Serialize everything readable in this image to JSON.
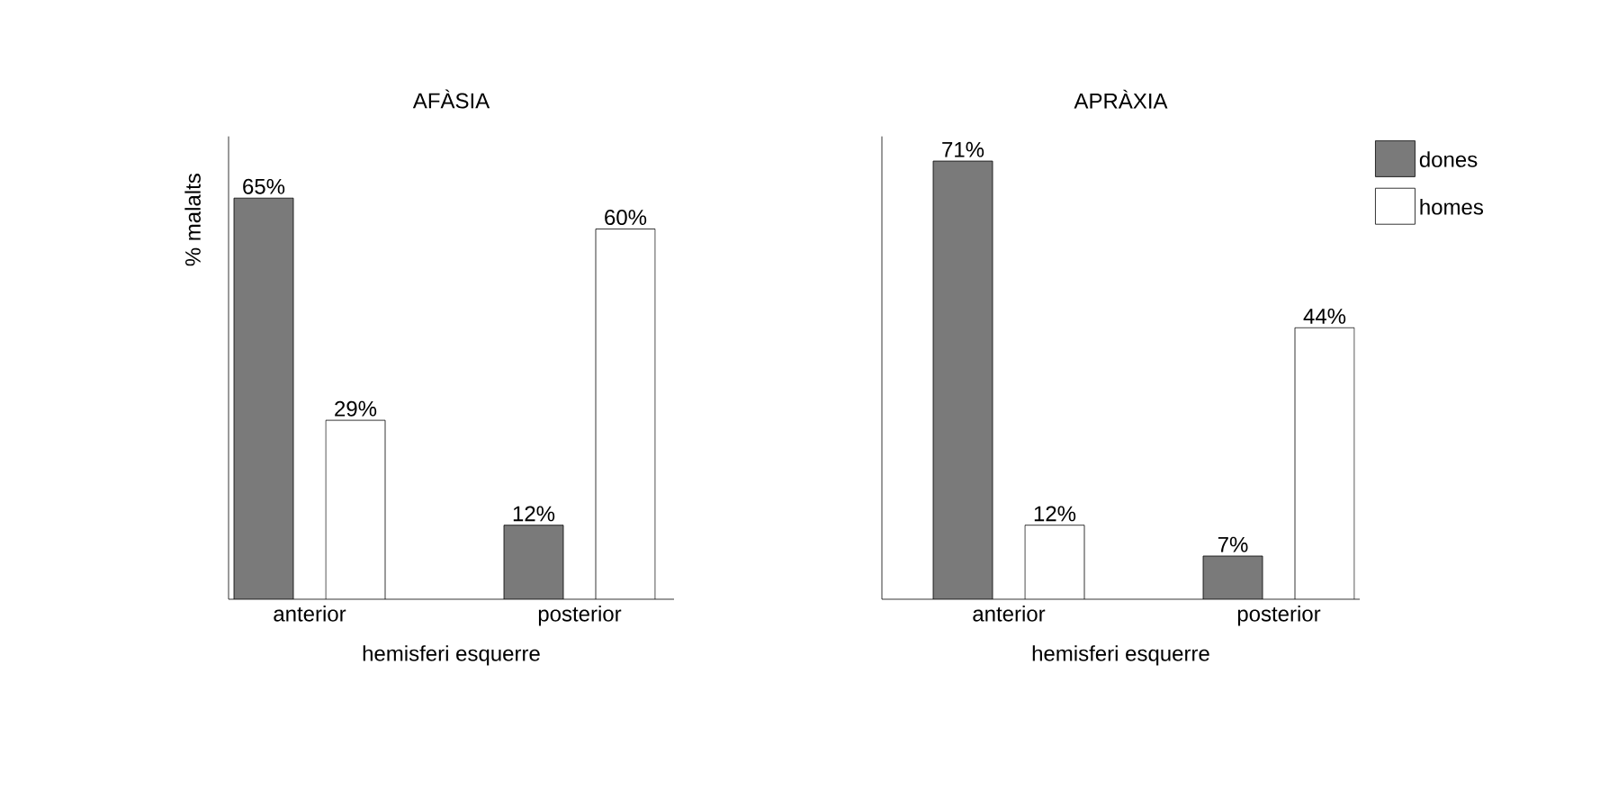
{
  "chart_data": [
    {
      "type": "bar",
      "title": "AFÀSIA",
      "ylabel": "% malalts",
      "xlabel": "hemisferi esquerre",
      "categories": [
        "anterior",
        "posterior"
      ],
      "ylim": [
        0,
        75
      ],
      "legend": false,
      "series": [
        {
          "color": "#7a7a7a",
          "values": [
            65,
            12
          ],
          "value_labels": [
            "65%",
            "12%"
          ]
        },
        {
          "color": "#ffffff",
          "values": [
            29,
            60
          ],
          "value_labels": [
            "29%",
            "60%"
          ]
        }
      ]
    },
    {
      "type": "bar",
      "title": "APRÀXIA",
      "xlabel": "hemisferi esquerre",
      "categories": [
        "anterior",
        "posterior"
      ],
      "ylim": [
        0,
        75
      ],
      "legend": "top right",
      "series": [
        {
          "name": "dones",
          "color": "#7a7a7a",
          "values": [
            71,
            7
          ],
          "value_labels": [
            "71%",
            "7%"
          ]
        },
        {
          "name": "homes",
          "color": "#ffffff",
          "values": [
            12,
            44
          ],
          "value_labels": [
            "12%",
            "44%"
          ]
        }
      ]
    }
  ]
}
